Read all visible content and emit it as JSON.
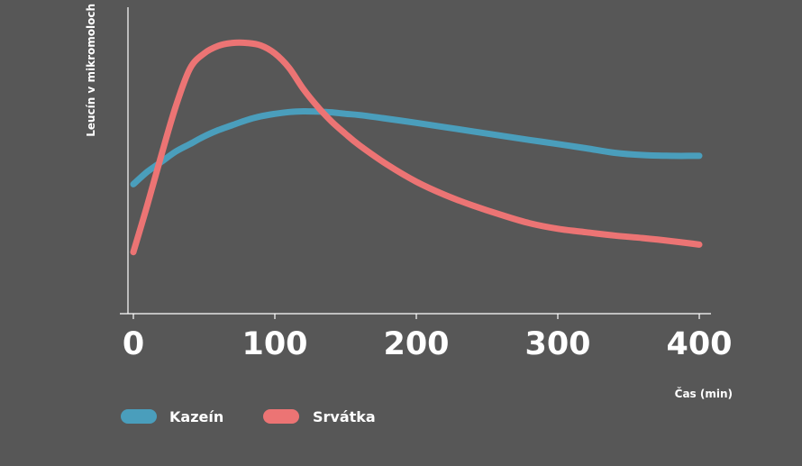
{
  "chart_data": {
    "type": "line",
    "xlabel": "Čas (min)",
    "ylabel": "Leucín v mikromoloch",
    "xlim": [
      0,
      400
    ],
    "xticks": [
      0,
      100,
      200,
      300,
      400
    ],
    "x_tick_labels": [
      "0",
      "100",
      "200",
      "300",
      "400"
    ],
    "y_ticks_shown": false,
    "grid": false,
    "legend_position": "bottom-left",
    "ylim": [
      0,
      100
    ],
    "series": [
      {
        "name": "Kazeín",
        "color": "#4a9ebc",
        "x": [
          0,
          10,
          20,
          30,
          40,
          50,
          60,
          70,
          80,
          90,
          100,
          110,
          120,
          130,
          140,
          150,
          160,
          180,
          200,
          220,
          240,
          260,
          280,
          300,
          320,
          340,
          360,
          380,
          400
        ],
        "y": [
          40,
          45,
          49,
          53,
          56,
          59,
          61.5,
          63.5,
          65.5,
          67,
          68,
          68.7,
          69,
          68.9,
          68.6,
          68,
          67.5,
          66,
          64.4,
          62.7,
          61,
          59.3,
          57.6,
          56,
          54.3,
          52.5,
          51.6,
          51.3,
          51.3
        ]
      },
      {
        "name": "Srvátka",
        "color": "#ec7474",
        "x": [
          0,
          10,
          20,
          30,
          40,
          50,
          60,
          70,
          80,
          90,
          100,
          110,
          120,
          130,
          140,
          150,
          160,
          180,
          200,
          220,
          240,
          260,
          280,
          300,
          320,
          340,
          360,
          380,
          400
        ],
        "y": [
          13,
          32,
          52,
          71,
          86,
          92,
          95,
          96.2,
          96.2,
          95.2,
          92,
          86.3,
          78,
          71,
          65,
          60,
          55.4,
          47.6,
          41,
          35.8,
          31.5,
          27.8,
          24.5,
          22.3,
          20.9,
          19.6,
          18.6,
          17.4,
          16
        ]
      }
    ]
  }
}
